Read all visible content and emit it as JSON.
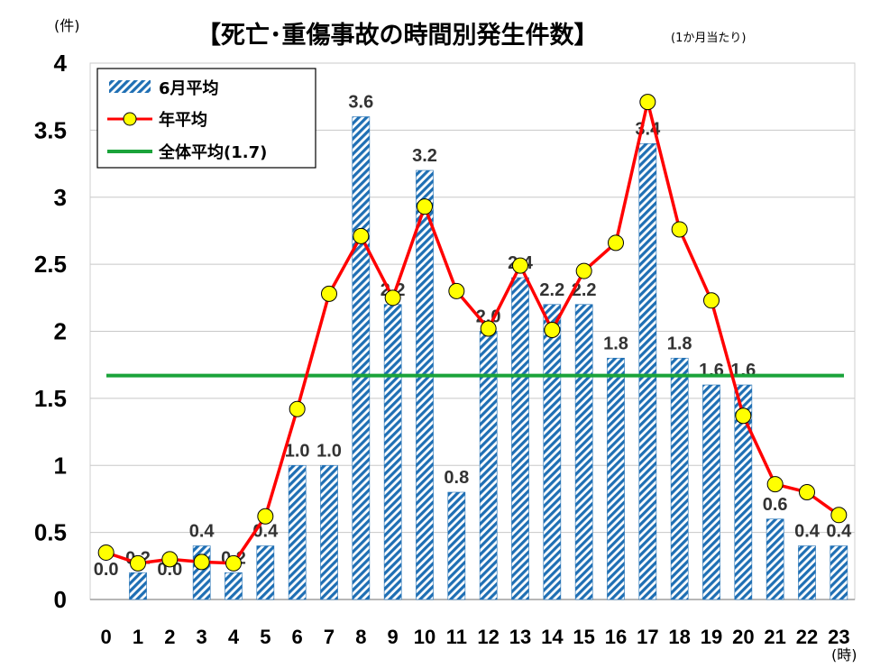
{
  "chart_data": {
    "type": "bar",
    "title": "【死亡･重傷事故の時間別発生件数】",
    "subtitle": "(1か月当たり)",
    "ylabel": "(件)",
    "xlabel": "(時)",
    "ylim": [
      0,
      4
    ],
    "yticks": [
      "0",
      "0.5",
      "1",
      "1.5",
      "2",
      "2.5",
      "3",
      "3.5",
      "4"
    ],
    "categories": [
      "0",
      "1",
      "2",
      "3",
      "4",
      "5",
      "6",
      "7",
      "8",
      "9",
      "10",
      "11",
      "12",
      "13",
      "14",
      "15",
      "16",
      "17",
      "18",
      "19",
      "20",
      "21",
      "22",
      "23"
    ],
    "series": [
      {
        "name": "6月平均",
        "kind": "bar",
        "values": [
          0.0,
          0.2,
          0.0,
          0.4,
          0.2,
          0.4,
          1.0,
          1.0,
          3.6,
          2.2,
          3.2,
          0.8,
          2.0,
          2.4,
          2.2,
          2.2,
          1.8,
          3.4,
          1.8,
          1.6,
          1.6,
          0.6,
          0.4,
          0.4
        ],
        "labels": [
          "0.0",
          "0.2",
          "0.0",
          "0.4",
          "0.2",
          "0.4",
          "1.0",
          "1.0",
          "3.6",
          "2.2",
          "3.2",
          "0.8",
          "2.0",
          "2.4",
          "2.2",
          "2.2",
          "1.8",
          "3.4",
          "1.8",
          "1.6",
          "1.6",
          "0.6",
          "0.4",
          "0.4"
        ],
        "color": "#1f6fb4"
      },
      {
        "name": "年平均",
        "kind": "line",
        "values": [
          0.35,
          0.27,
          0.3,
          0.28,
          0.27,
          0.62,
          1.42,
          2.28,
          2.71,
          2.25,
          2.93,
          2.3,
          2.02,
          2.49,
          2.01,
          2.45,
          2.66,
          3.71,
          2.76,
          2.23,
          1.37,
          0.86,
          0.8,
          0.63
        ],
        "color": "#ff0000",
        "marker_color": "#ffff00"
      },
      {
        "name": "全体平均(1.7)",
        "kind": "hline",
        "value": 1.67,
        "color": "#1aa33a"
      }
    ],
    "legend_position": "top-left",
    "grid": true
  }
}
